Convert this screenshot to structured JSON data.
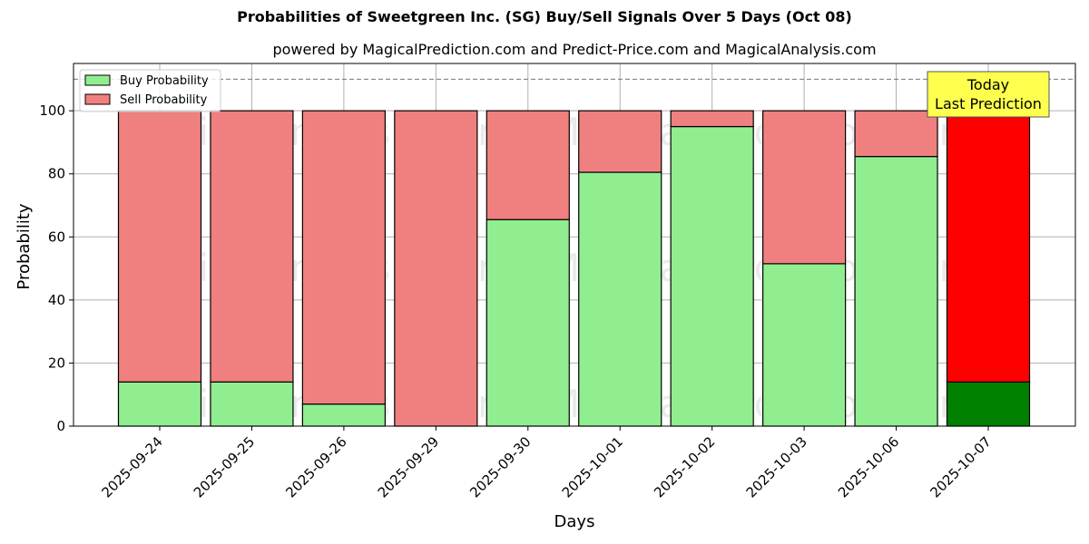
{
  "chart_data": {
    "type": "bar",
    "stacked": true,
    "title": "Probabilities of Sweetgreen Inc. (SG) Buy/Sell Signals Over 5 Days (Oct 08)",
    "subtitle": "powered by MagicalPrediction.com and Predict-Price.com and MagicalAnalysis.com",
    "xlabel": "Days",
    "ylabel": "Probability",
    "ylim": [
      0,
      115
    ],
    "yticks": [
      0,
      20,
      40,
      60,
      80,
      100
    ],
    "grid": true,
    "legend_position": "top-left",
    "reference_line": 110,
    "categories": [
      "2025-09-24",
      "2025-09-25",
      "2025-09-26",
      "2025-09-29",
      "2025-09-30",
      "2025-10-01",
      "2025-10-02",
      "2025-10-03",
      "2025-10-06",
      "2025-10-07"
    ],
    "series": [
      {
        "name": "Buy Probability",
        "color": "#90ee90",
        "highlight_color": "#008000",
        "values": [
          14,
          14,
          7,
          0,
          65.5,
          80.5,
          95,
          51.5,
          85.5,
          14
        ]
      },
      {
        "name": "Sell Probability",
        "color": "#f08080",
        "highlight_color": "#ff0000",
        "values": [
          86,
          86,
          93,
          100,
          34.5,
          19.5,
          5,
          48.5,
          14.5,
          86
        ]
      }
    ],
    "highlight_index": 9,
    "annotation": {
      "line1": "Today",
      "line2": "Last Prediction",
      "bg_color": "#ffff4d"
    },
    "watermarks": [
      "MagicalAnalysis.com",
      "MagicalPrediction.com"
    ]
  }
}
